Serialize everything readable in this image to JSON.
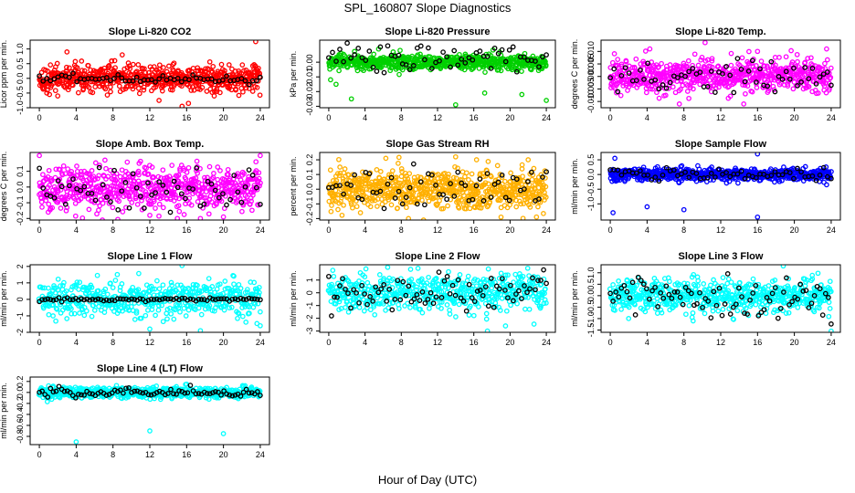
{
  "figure": {
    "title": "SPL_160807  Slope Diagnostics",
    "xlabel": "Hour of Day (UTC)"
  },
  "colors": {
    "overlay": "#000000",
    "frame": "#000000",
    "background": "#ffffff"
  },
  "chart_data": [
    {
      "type": "scatter",
      "title": "Slope Li-820 CO2",
      "ylabel": "Licor ppm per min.",
      "xlim": [
        -1,
        25
      ],
      "ylim": [
        -1.0,
        1.3
      ],
      "xticks": [
        0,
        4,
        8,
        12,
        16,
        20,
        24
      ],
      "xtick_labels": [
        "0",
        "4",
        "8",
        "12",
        "16",
        "20",
        "24"
      ],
      "yticks": [
        -1.0,
        -0.5,
        0.0,
        0.5,
        1.0
      ],
      "ytick_labels": [
        "-1.0",
        "-0.5",
        "0.0",
        "0.5",
        "1.0"
      ],
      "color": "#ff0000",
      "noise_sd": 0.22,
      "overlay_sd": 0.07,
      "outliers": [
        [
          2,
          -0.6
        ],
        [
          15.5,
          -0.95
        ],
        [
          13,
          -0.75
        ],
        [
          19,
          -0.6
        ],
        [
          23.5,
          1.25
        ],
        [
          3,
          0.9
        ],
        [
          9,
          0.8
        ],
        [
          16.2,
          -0.85
        ]
      ],
      "n_points": 650,
      "n_overlay": 60
    },
    {
      "type": "scatter",
      "title": "Slope Li-820 Pressure",
      "ylabel": "kPa per min.",
      "xlim": [
        -1,
        25
      ],
      "ylim": [
        -0.031,
        0.015
      ],
      "xticks": [
        0,
        4,
        8,
        12,
        16,
        20,
        24
      ],
      "xtick_labels": [
        "0",
        "4",
        "8",
        "12",
        "16",
        "20",
        "24"
      ],
      "yticks": [
        -0.03,
        -0.02,
        -0.01,
        0.0
      ],
      "ytick_labels": [
        "-0.03",
        "-0.02",
        "-0.01",
        "0.00"
      ],
      "color": "#00d000",
      "noise_sd": 0.0025,
      "overlay_sd": 0.005,
      "overlay_mean": 0.004,
      "outliers": [
        [
          0.2,
          -0.012
        ],
        [
          0.8,
          -0.015
        ],
        [
          2.5,
          -0.025
        ],
        [
          14,
          -0.029
        ],
        [
          17.2,
          -0.021
        ],
        [
          21.3,
          -0.022
        ],
        [
          24,
          -0.026
        ],
        [
          5.5,
          0.009
        ]
      ],
      "n_points": 650,
      "n_overlay": 60
    },
    {
      "type": "scatter",
      "title": "Slope Li-820 Temp.",
      "ylabel": "degrees C per min.",
      "xlim": [
        -1,
        25
      ],
      "ylim": [
        -0.0125,
        0.0145
      ],
      "xticks": [
        0,
        4,
        8,
        12,
        16,
        20,
        24
      ],
      "xtick_labels": [
        "0",
        "4",
        "8",
        "12",
        "16",
        "20",
        "24"
      ],
      "yticks": [
        -0.01,
        -0.005,
        0.0,
        0.005,
        0.01
      ],
      "ytick_labels": [
        "-0.010",
        "-0.005",
        "0.000",
        "0.005",
        "0.010"
      ],
      "color": "#ff00ff",
      "noise_sd": 0.0035,
      "overlay_sd": 0.003,
      "outliers": [
        [
          10.3,
          0.0135
        ],
        [
          4.3,
          0.011
        ],
        [
          7.5,
          -0.011
        ],
        [
          14.5,
          -0.011
        ],
        [
          23.5,
          0.011
        ],
        [
          16,
          0.01
        ]
      ],
      "n_points": 650,
      "n_overlay": 60
    },
    {
      "type": "scatter",
      "title": "Slope Amb. Box Temp.",
      "ylabel": "degrees C per min.",
      "xlim": [
        -1,
        25
      ],
      "ylim": [
        -0.21,
        0.22
      ],
      "xticks": [
        0,
        4,
        8,
        12,
        16,
        20,
        24
      ],
      "xtick_labels": [
        "0",
        "4",
        "8",
        "12",
        "16",
        "20",
        "24"
      ],
      "yticks": [
        -0.2,
        -0.1,
        0.0,
        0.1
      ],
      "ytick_labels": [
        "-0.2",
        "-0.1",
        "0.0",
        "0.1"
      ],
      "color": "#ff00ff",
      "noise_sd": 0.07,
      "overlay_sd": 0.07,
      "outliers": [
        [
          0,
          0.2
        ],
        [
          15,
          -0.2
        ],
        [
          24,
          0.2
        ],
        [
          12,
          -0.18
        ],
        [
          20,
          -0.19
        ],
        [
          17.5,
          -0.2
        ]
      ],
      "n_points": 650,
      "n_overlay": 60
    },
    {
      "type": "scatter",
      "title": "Slope Gas Stream RH",
      "ylabel": "percent per min.",
      "xlim": [
        -1,
        25
      ],
      "ylim": [
        -0.21,
        0.25
      ],
      "xticks": [
        0,
        4,
        8,
        12,
        16,
        20,
        24
      ],
      "xtick_labels": [
        "0",
        "4",
        "8",
        "12",
        "16",
        "20",
        "24"
      ],
      "yticks": [
        -0.2,
        -0.1,
        0.0,
        0.1,
        0.2
      ],
      "ytick_labels": [
        "-0.2",
        "-0.1",
        "0.0",
        "0.1",
        "0.2"
      ],
      "color": "#ffb000",
      "noise_sd": 0.07,
      "overlay_sd": 0.07,
      "outliers": [
        [
          14,
          0.22
        ],
        [
          16.3,
          0.2
        ],
        [
          6.3,
          0.21
        ],
        [
          22,
          0.2
        ],
        [
          8.8,
          -0.2
        ],
        [
          19,
          -0.19
        ]
      ],
      "n_points": 700,
      "n_overlay": 60
    },
    {
      "type": "scatter",
      "title": "Slope Sample Flow",
      "ylabel": "ml/min per min.",
      "xlim": [
        -1,
        25
      ],
      "ylim": [
        -1.55,
        0.75
      ],
      "xticks": [
        0,
        4,
        8,
        12,
        16,
        20,
        24
      ],
      "xtick_labels": [
        "0",
        "4",
        "8",
        "12",
        "16",
        "20",
        "24"
      ],
      "yticks": [
        -1.0,
        -0.5,
        0.0,
        0.5
      ],
      "ytick_labels": [
        "-1.0",
        "-0.5",
        "0.0",
        "0.5"
      ],
      "color": "#0000ff",
      "noise_sd": 0.1,
      "overlay_sd": 0.1,
      "outliers": [
        [
          0.3,
          -1.3
        ],
        [
          0.5,
          0.55
        ],
        [
          4,
          -1.1
        ],
        [
          8,
          -1.2
        ],
        [
          16,
          0.7
        ],
        [
          16,
          -1.45
        ],
        [
          23.5,
          -0.35
        ]
      ],
      "n_points": 700,
      "n_overlay": 60
    },
    {
      "type": "scatter",
      "title": "Slope Line 1 Flow",
      "ylabel": "ml/min per min.",
      "xlim": [
        -1,
        25
      ],
      "ylim": [
        -2.0,
        2.1
      ],
      "xticks": [
        0,
        4,
        8,
        12,
        16,
        20,
        24
      ],
      "xtick_labels": [
        "0",
        "4",
        "8",
        "12",
        "16",
        "20",
        "24"
      ],
      "yticks": [
        -2,
        -1,
        0,
        1,
        2
      ],
      "ytick_labels": [
        "-2",
        "-1",
        "0",
        "1",
        "2"
      ],
      "color": "#00ffff",
      "noise_sd": 0.55,
      "overlay_sd": 0.05,
      "outliers": [
        [
          15.5,
          2.05
        ],
        [
          17.5,
          -1.9
        ],
        [
          24,
          -1.6
        ],
        [
          12,
          -1.8
        ]
      ],
      "n_points": 500,
      "n_overlay": 80
    },
    {
      "type": "scatter",
      "title": "Slope Line 2 Flow",
      "ylabel": "ml/min per min.",
      "xlim": [
        -1,
        25
      ],
      "ylim": [
        -3.1,
        2.2
      ],
      "xticks": [
        0,
        4,
        8,
        12,
        16,
        20,
        24
      ],
      "xtick_labels": [
        "0",
        "4",
        "8",
        "12",
        "16",
        "20",
        "24"
      ],
      "yticks": [
        -3,
        -2,
        -1,
        0,
        1
      ],
      "ytick_labels": [
        "-3",
        "-2",
        "-1",
        "0",
        "1"
      ],
      "color": "#00ffff",
      "noise_sd": 0.7,
      "overlay_sd": 0.8,
      "outliers": [
        [
          17.5,
          -3.0
        ],
        [
          19.5,
          -2.6
        ],
        [
          6.5,
          2.0
        ]
      ],
      "n_points": 550,
      "n_overlay": 80
    },
    {
      "type": "scatter",
      "title": "Slope Line 3 Flow",
      "ylabel": "ml/min per min.",
      "xlim": [
        -1,
        25
      ],
      "ylim": [
        -1.6,
        1.35
      ],
      "xticks": [
        0,
        4,
        8,
        12,
        16,
        20,
        24
      ],
      "xtick_labels": [
        "0",
        "4",
        "8",
        "12",
        "16",
        "20",
        "24"
      ],
      "yticks": [
        -1.5,
        -1.0,
        -0.5,
        0.0,
        0.5,
        1.0
      ],
      "ytick_labels": [
        "-1.5",
        "-1.0",
        "-0.5",
        "0.0",
        "0.5",
        "1.0"
      ],
      "color": "#00ffff",
      "noise_sd": 0.35,
      "overlay_sd": 0.45,
      "outliers": [
        [
          24,
          -1.55
        ],
        [
          18.8,
          1.3
        ],
        [
          2,
          -1.0
        ],
        [
          9,
          -1.1
        ]
      ],
      "n_points": 600,
      "n_overlay": 80
    },
    {
      "type": "scatter",
      "title": "Slope Line 4 (LT) Flow",
      "ylabel": "ml/min per min.",
      "xlim": [
        -1,
        25
      ],
      "ylim": [
        -0.95,
        0.28
      ],
      "xticks": [
        0,
        4,
        8,
        12,
        16,
        20,
        24
      ],
      "xtick_labels": [
        "0",
        "4",
        "8",
        "12",
        "16",
        "20",
        "24"
      ],
      "yticks": [
        -0.8,
        -0.6,
        -0.4,
        -0.2,
        0.0,
        0.2
      ],
      "ytick_labels": [
        "-0.8",
        "-0.6",
        "-0.4",
        "-0.2",
        "0.0",
        "0.2"
      ],
      "color": "#00ffff",
      "noise_sd": 0.05,
      "overlay_sd": 0.05,
      "outliers": [
        [
          4,
          -0.9
        ],
        [
          12,
          -0.7
        ],
        [
          20,
          -0.75
        ],
        [
          16,
          0.15
        ],
        [
          1,
          0.12
        ]
      ],
      "n_points": 650,
      "n_overlay": 80
    }
  ]
}
